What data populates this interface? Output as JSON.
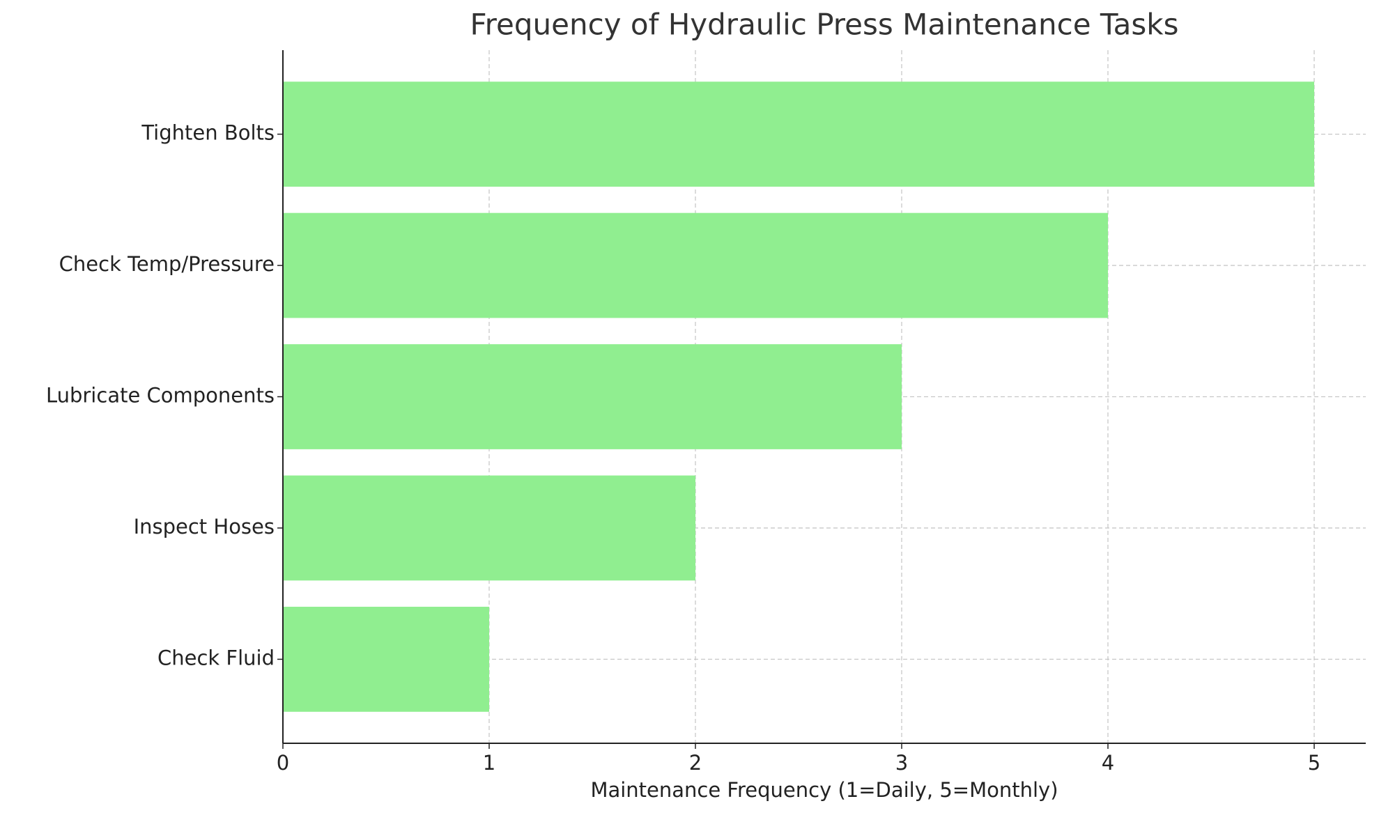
{
  "chart_data": {
    "type": "hbar",
    "title": "Frequency of Hydraulic Press Maintenance Tasks",
    "xlabel": "Maintenance Frequency (1=Daily, 5=Monthly)",
    "categories": [
      "Check Fluid",
      "Inspect Hoses",
      "Lubricate Components",
      "Check Temp/Pressure",
      "Tighten Bolts"
    ],
    "values": [
      1,
      2,
      3,
      4,
      5
    ],
    "color": "#90ee90",
    "xlim": [
      0,
      5.25
    ],
    "xticks": [
      0,
      1,
      2,
      3,
      4,
      5
    ],
    "grid": true
  }
}
